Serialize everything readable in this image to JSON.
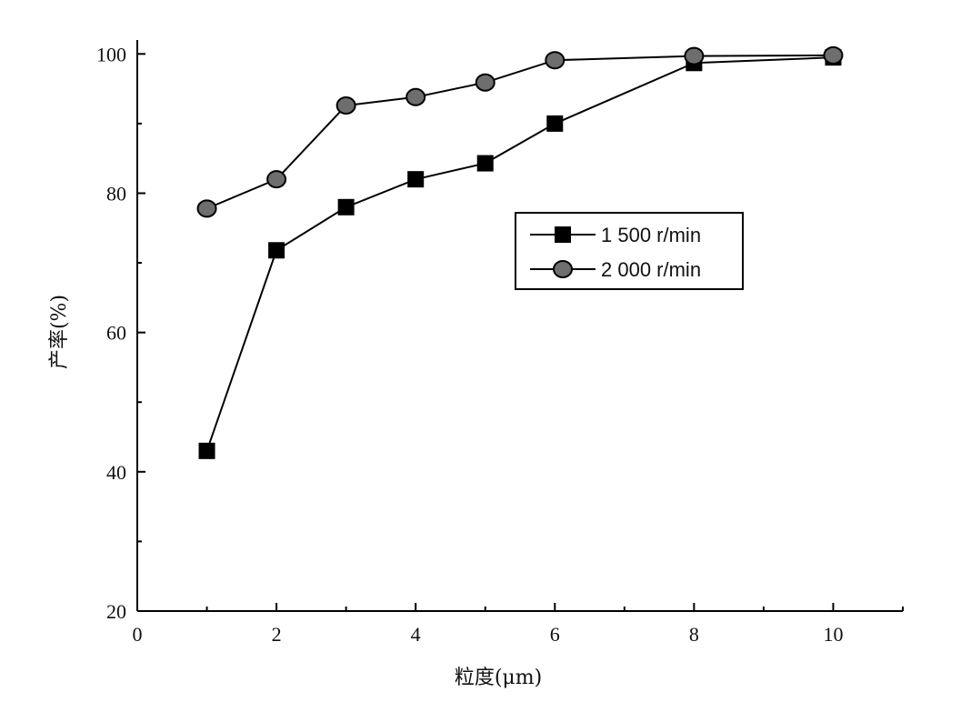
{
  "chart_data": {
    "type": "line",
    "title": "",
    "xlabel": "粒度(μm)",
    "ylabel": "产率(%)",
    "xlim": [
      0,
      11
    ],
    "ylim": [
      20,
      102
    ],
    "xticks": [
      0,
      2,
      4,
      6,
      8,
      10
    ],
    "yticks": [
      20,
      40,
      60,
      80,
      100
    ],
    "grid": false,
    "legend_position": "center-right",
    "series": [
      {
        "name": "1 500 r/min",
        "marker": "square",
        "color": "#000000",
        "x": [
          1,
          2,
          3,
          4,
          5,
          6,
          8,
          10
        ],
        "y": [
          43,
          71.8,
          78,
          82,
          84.3,
          90,
          98.7,
          99.5
        ]
      },
      {
        "name": "2 000 r/min",
        "marker": "circle",
        "color": "#6e6e6e",
        "x": [
          1,
          2,
          3,
          4,
          5,
          6,
          8,
          10
        ],
        "y": [
          77.8,
          82,
          92.6,
          93.8,
          95.9,
          99.1,
          99.7,
          99.8
        ]
      }
    ]
  }
}
